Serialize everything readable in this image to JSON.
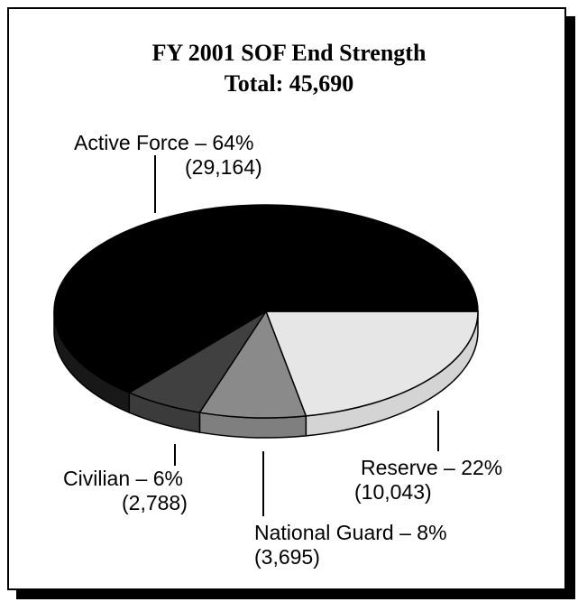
{
  "chart_data": {
    "type": "pie",
    "title": "FY 2001 SOF End Strength",
    "subtitle": "Total: 45,690",
    "slices": [
      {
        "name": "Active Force",
        "percent_label": "64%",
        "count": 29164,
        "count_label": "(29,164)",
        "label": "Active Force – 64%",
        "color": "#000000"
      },
      {
        "name": "Reserve",
        "percent_label": "22%",
        "count": 10043,
        "count_label": "(10,043)",
        "label": "Reserve – 22%",
        "color": "#e6e6e6"
      },
      {
        "name": "National Guard",
        "percent_label": "8%",
        "count": 3695,
        "count_label": "(3,695)",
        "label": "National Guard – 8%",
        "color": "#8a8a8a"
      },
      {
        "name": "Civilian",
        "percent_label": "6%",
        "count": 2788,
        "count_label": "(2,788)",
        "label": "Civilian – 6%",
        "color": "#404040"
      }
    ],
    "style": "3d"
  }
}
